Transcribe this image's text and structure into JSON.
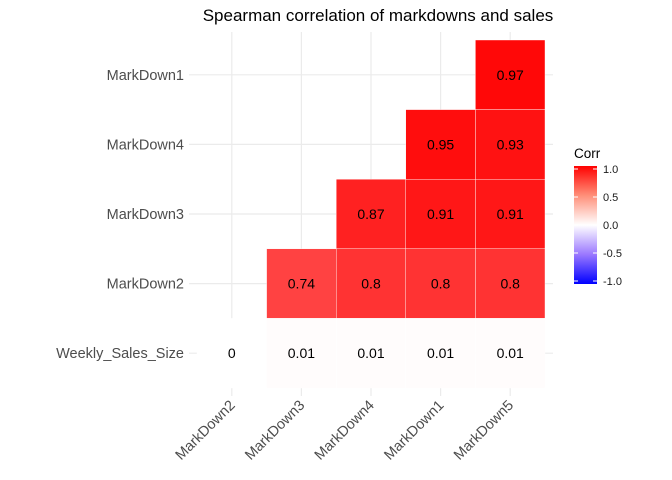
{
  "chart_data": {
    "type": "heatmap",
    "title": "Spearman correlation of markdowns and sales",
    "x_categories": [
      "MarkDown2",
      "MarkDown3",
      "MarkDown4",
      "MarkDown1",
      "MarkDown5"
    ],
    "y_categories": [
      "MarkDown1",
      "MarkDown4",
      "MarkDown3",
      "MarkDown2",
      "Weekly_Sales_Size"
    ],
    "cells": [
      {
        "x": "MarkDown5",
        "y": "MarkDown1",
        "value": 0.97,
        "label": "0.97"
      },
      {
        "x": "MarkDown1",
        "y": "MarkDown4",
        "value": 0.95,
        "label": "0.95"
      },
      {
        "x": "MarkDown5",
        "y": "MarkDown4",
        "value": 0.93,
        "label": "0.93"
      },
      {
        "x": "MarkDown4",
        "y": "MarkDown3",
        "value": 0.87,
        "label": "0.87"
      },
      {
        "x": "MarkDown1",
        "y": "MarkDown3",
        "value": 0.91,
        "label": "0.91"
      },
      {
        "x": "MarkDown5",
        "y": "MarkDown3",
        "value": 0.91,
        "label": "0.91"
      },
      {
        "x": "MarkDown3",
        "y": "MarkDown2",
        "value": 0.74,
        "label": "0.74"
      },
      {
        "x": "MarkDown4",
        "y": "MarkDown2",
        "value": 0.8,
        "label": "0.8"
      },
      {
        "x": "MarkDown1",
        "y": "MarkDown2",
        "value": 0.8,
        "label": "0.8"
      },
      {
        "x": "MarkDown5",
        "y": "MarkDown2",
        "value": 0.8,
        "label": "0.8"
      },
      {
        "x": "MarkDown2",
        "y": "Weekly_Sales_Size",
        "value": 0,
        "label": "0"
      },
      {
        "x": "MarkDown3",
        "y": "Weekly_Sales_Size",
        "value": 0.01,
        "label": "0.01"
      },
      {
        "x": "MarkDown4",
        "y": "Weekly_Sales_Size",
        "value": 0.01,
        "label": "0.01"
      },
      {
        "x": "MarkDown1",
        "y": "Weekly_Sales_Size",
        "value": 0.01,
        "label": "0.01"
      },
      {
        "x": "MarkDown5",
        "y": "Weekly_Sales_Size",
        "value": 0.01,
        "label": "0.01"
      }
    ],
    "legend": {
      "title": "Corr",
      "position": "right",
      "range": [
        -1,
        1
      ],
      "ticks": [
        1.0,
        0.5,
        0.0,
        -0.5,
        -1.0
      ],
      "tick_labels": [
        "1.0",
        "0.5",
        "0.0",
        "-0.5",
        "-1.0"
      ],
      "low_color": "#0000ff",
      "mid_color": "#ffffff",
      "high_color": "#ff0000"
    },
    "grid": true,
    "x_tick_rotation": "45 degrees"
  }
}
